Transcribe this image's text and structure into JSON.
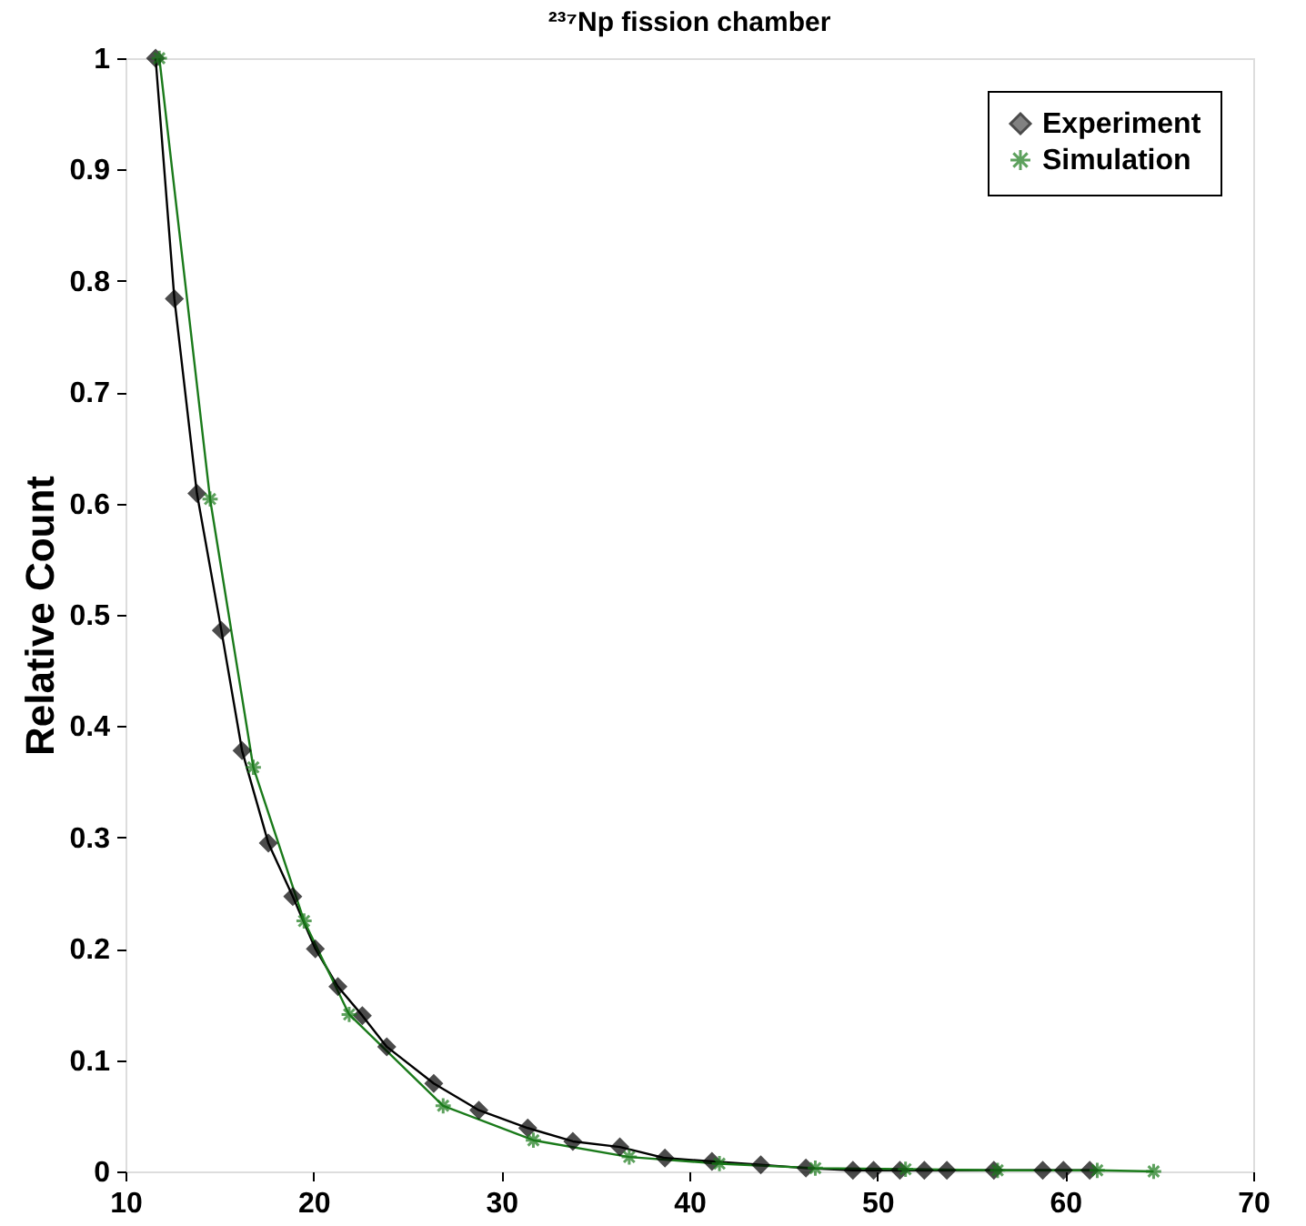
{
  "chart_data": {
    "type": "line",
    "title": "²³⁷Np fission chamber",
    "ylabel": "Relative Count",
    "xlim": [
      10,
      70
    ],
    "xticks": [
      10,
      20,
      30,
      40,
      50,
      60,
      70
    ],
    "ylim": [
      0,
      1
    ],
    "yticks": [
      0,
      0.1,
      0.2,
      0.3,
      0.4,
      0.5,
      0.6,
      0.7,
      0.8,
      0.9,
      1
    ],
    "grid": false,
    "legend": "top right",
    "line_style": "solid",
    "series": [
      {
        "name": "Experiment",
        "color": "#000000",
        "marker": "diamond",
        "x": [
          11.6,
          12.6,
          13.8,
          15.1,
          16.2,
          17.6,
          18.9,
          20.1,
          21.3,
          22.6,
          23.9,
          26.4,
          28.8,
          31.4,
          33.8,
          36.3,
          38.7,
          41.2,
          43.8,
          46.2,
          48.7,
          49.8,
          51.2,
          52.5,
          53.7,
          56.2,
          58.8,
          59.9,
          61.3
        ],
        "values": [
          1.0,
          0.784,
          0.609,
          0.486,
          0.378,
          0.295,
          0.247,
          0.2,
          0.166,
          0.14,
          0.112,
          0.079,
          0.055,
          0.039,
          0.027,
          0.022,
          0.012,
          0.009,
          0.006,
          0.003,
          0.001,
          0.001,
          0.001,
          0.001,
          0.001,
          0.001,
          0.001,
          0.001,
          0.001
        ]
      },
      {
        "name": "Simulation",
        "color": "#1a7a1a",
        "marker": "cross",
        "x": [
          11.8,
          14.5,
          16.8,
          19.5,
          21.9,
          26.9,
          31.7,
          36.8,
          41.6,
          46.7,
          51.5,
          56.4,
          61.7,
          64.7
        ],
        "values": [
          1.0,
          0.604,
          0.363,
          0.225,
          0.141,
          0.059,
          0.028,
          0.013,
          0.007,
          0.003,
          0.002,
          0.001,
          0.001,
          0.0
        ]
      }
    ]
  }
}
